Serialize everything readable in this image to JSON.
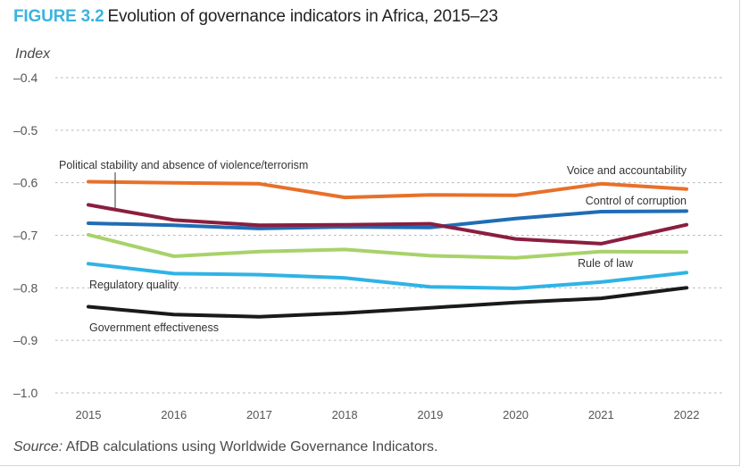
{
  "figure": {
    "number": "FIGURE 3.2",
    "title": "Evolution of governance indicators in Africa, 2015–23",
    "source_prefix": "Source:",
    "source_text": " AfDB calculations using Worldwide Governance Indicators."
  },
  "chart_data": {
    "type": "line",
    "title": "Evolution of governance indicators in Africa, 2015–23",
    "xlabel": "",
    "ylabel": "Index",
    "x": [
      "2015",
      "2016",
      "2017",
      "2018",
      "2019",
      "2020",
      "2021",
      "2022"
    ],
    "ylim": [
      -1.0,
      -0.4
    ],
    "yticks": [
      -0.4,
      -0.5,
      -0.6,
      -0.7,
      -0.8,
      -0.9,
      -1.0
    ],
    "ytick_labels": [
      "–0.4",
      "–0.5",
      "–0.6",
      "–0.7",
      "–0.8",
      "–0.9",
      "–1.0"
    ],
    "grid": "horizontal dotted",
    "legend": "direct labels on lines",
    "series": [
      {
        "name": "Voice and accountability",
        "color": "#e8702a",
        "values": [
          -0.598,
          -0.6,
          -0.602,
          -0.628,
          -0.623,
          -0.624,
          -0.602,
          -0.612
        ]
      },
      {
        "name": "Political stability and absence of violence/terrorism",
        "color": "#8b1e3f",
        "values": [
          -0.642,
          -0.671,
          -0.681,
          -0.68,
          -0.678,
          -0.707,
          -0.716,
          -0.68
        ]
      },
      {
        "name": "Control of corruption",
        "color": "#1f6db5",
        "values": [
          -0.677,
          -0.681,
          -0.687,
          -0.684,
          -0.685,
          -0.668,
          -0.655,
          -0.654
        ]
      },
      {
        "name": "Rule of law",
        "color": "#a8d26a",
        "values": [
          -0.699,
          -0.74,
          -0.731,
          -0.727,
          -0.739,
          -0.743,
          -0.731,
          -0.732
        ]
      },
      {
        "name": "Regulatory quality",
        "color": "#30b3e6",
        "values": [
          -0.754,
          -0.773,
          -0.775,
          -0.781,
          -0.798,
          -0.801,
          -0.789,
          -0.771
        ]
      },
      {
        "name": "Government effectiveness",
        "color": "#1a1a1a",
        "values": [
          -0.836,
          -0.851,
          -0.855,
          -0.848,
          -0.838,
          -0.828,
          -0.82,
          -0.8
        ]
      }
    ]
  }
}
